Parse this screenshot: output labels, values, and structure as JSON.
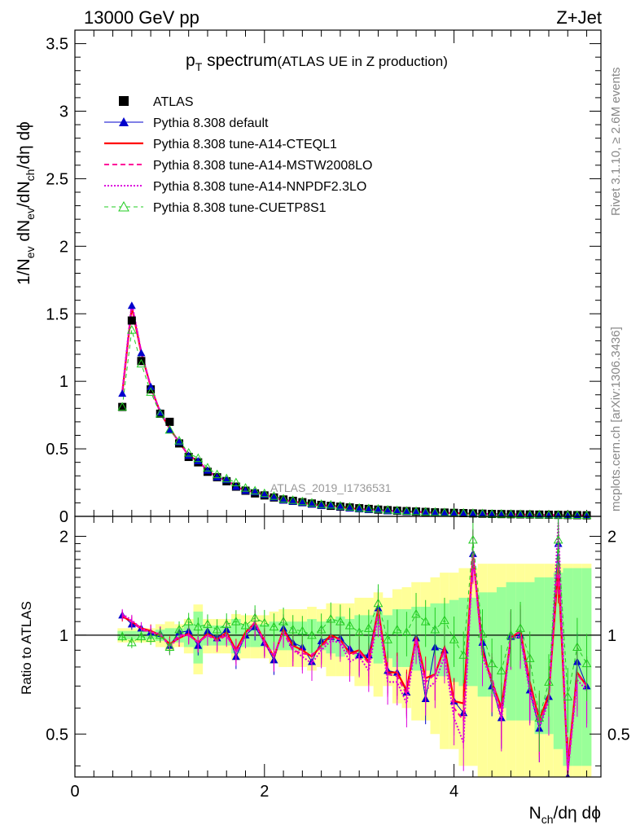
{
  "header": {
    "left": "13000 GeV pp",
    "right": "Z+Jet"
  },
  "plot_title": {
    "main": "p",
    "sub": "T",
    "rest": " spectrum",
    "paren": "(ATLAS UE in Z production)"
  },
  "side_labels": {
    "rivet": "Rivet 3.1.10, ≥ 2.6M events",
    "mcplots": "mcplots.cern.ch [arXiv:1306.3436]"
  },
  "watermark": "ATLAS_2019_I1736531",
  "ylabel_main": {
    "p1": "1/N",
    "s1": "ev",
    "p2": " dN",
    "s2": "ev",
    "p3": "/dN",
    "s3": "ch",
    "p4": "/dη dϕ"
  },
  "ylabel_ratio": "Ratio to ATLAS",
  "xlabel": {
    "p1": "N",
    "s1": "ch",
    "p2": "/dη dϕ"
  },
  "colors": {
    "data": "#000000",
    "default": "#0000cc",
    "cteql1": "#ff0000",
    "mstw": "#ff0099",
    "nnpdf": "#dd00dd",
    "cuetp8s1": "#22cc22",
    "band_inner": "#99ff99",
    "band_outer": "#ffff99"
  },
  "chart_data": [
    {
      "type": "line",
      "panel": "main",
      "x": [
        0.5,
        0.6,
        0.7,
        0.8,
        0.9,
        1.0,
        1.1,
        1.2,
        1.3,
        1.4,
        1.5,
        1.6,
        1.7,
        1.8,
        1.9,
        2.0,
        2.1,
        2.2,
        2.3,
        2.4,
        2.5,
        2.6,
        2.7,
        2.8,
        2.9,
        3.0,
        3.1,
        3.2,
        3.3,
        3.4,
        3.5,
        3.6,
        3.7,
        3.8,
        3.9,
        4.0,
        4.1,
        4.2,
        4.3,
        4.4,
        4.5,
        4.6,
        4.7,
        4.8,
        4.9,
        5.0,
        5.1,
        5.2,
        5.3,
        5.4
      ],
      "xlim": [
        0,
        5.55
      ],
      "ylim": [
        0,
        3.6
      ],
      "xticks": [
        0,
        2,
        4
      ],
      "yticks": [
        0,
        0.5,
        1,
        1.5,
        2,
        2.5,
        3,
        3.5
      ],
      "series": [
        {
          "name": "ATLAS",
          "style": "square",
          "values": [
            0.81,
            1.45,
            1.15,
            0.94,
            0.76,
            0.7,
            0.54,
            0.44,
            0.4,
            0.33,
            0.29,
            0.26,
            0.22,
            0.19,
            0.17,
            0.155,
            0.14,
            0.125,
            0.115,
            0.105,
            0.095,
            0.085,
            0.078,
            0.072,
            0.066,
            0.06,
            0.055,
            0.05,
            0.046,
            0.042,
            0.039,
            0.036,
            0.033,
            0.03,
            0.028,
            0.026,
            0.024,
            0.022,
            0.02,
            0.018,
            0.017,
            0.016,
            0.015,
            0.014,
            0.013,
            0.012,
            0.011,
            0.01,
            0.009,
            0.008
          ]
        },
        {
          "name": "Pythia 8.308 default",
          "style": "solid-triangle",
          "values": [
            0.91,
            1.56,
            1.21,
            0.96,
            0.77,
            0.64,
            0.55,
            0.45,
            0.41,
            0.34,
            0.29,
            0.27,
            0.22,
            0.19,
            0.18,
            0.16,
            0.14,
            0.12,
            0.11,
            0.1,
            0.09,
            0.08,
            0.08,
            0.07,
            0.06,
            0.055,
            0.05,
            0.05,
            0.04,
            0.04,
            0.035,
            0.035,
            0.03,
            0.028,
            0.026,
            0.024,
            0.022,
            0.02,
            0.018,
            0.017,
            0.016,
            0.015,
            0.014,
            0.013,
            0.012,
            0.011,
            0.01,
            0.009,
            0.008,
            0.007
          ]
        },
        {
          "name": "Pythia 8.308 tune-A14-CTEQL1",
          "style": "solid",
          "values": [
            0.91,
            1.55,
            1.21,
            0.96,
            0.77,
            0.65,
            0.55,
            0.45,
            0.41,
            0.34,
            0.29,
            0.27,
            0.22,
            0.19,
            0.18,
            0.16,
            0.14,
            0.12,
            0.11,
            0.1,
            0.09,
            0.08,
            0.08,
            0.07,
            0.06,
            0.055,
            0.05,
            0.05,
            0.04,
            0.04,
            0.035,
            0.035,
            0.03,
            0.028,
            0.026,
            0.024,
            0.022,
            0.02,
            0.018,
            0.017,
            0.016,
            0.015,
            0.014,
            0.013,
            0.012,
            0.011,
            0.01,
            0.009,
            0.008,
            0.007
          ]
        },
        {
          "name": "Pythia 8.308 tune-A14-MSTW2008LO",
          "style": "dashed",
          "values": [
            0.92,
            1.57,
            1.22,
            0.96,
            0.77,
            0.65,
            0.55,
            0.45,
            0.41,
            0.34,
            0.29,
            0.27,
            0.22,
            0.19,
            0.18,
            0.16,
            0.14,
            0.12,
            0.11,
            0.1,
            0.09,
            0.08,
            0.08,
            0.07,
            0.06,
            0.055,
            0.05,
            0.05,
            0.04,
            0.04,
            0.035,
            0.035,
            0.03,
            0.028,
            0.026,
            0.024,
            0.022,
            0.02,
            0.018,
            0.017,
            0.016,
            0.015,
            0.014,
            0.013,
            0.012,
            0.011,
            0.01,
            0.009,
            0.008,
            0.007
          ]
        },
        {
          "name": "Pythia 8.308 tune-A14-NNPDF2.3LO",
          "style": "dotted",
          "values": [
            0.93,
            1.58,
            1.22,
            0.96,
            0.77,
            0.65,
            0.55,
            0.45,
            0.41,
            0.34,
            0.29,
            0.27,
            0.22,
            0.19,
            0.18,
            0.16,
            0.14,
            0.12,
            0.11,
            0.1,
            0.09,
            0.08,
            0.08,
            0.07,
            0.06,
            0.055,
            0.05,
            0.05,
            0.04,
            0.04,
            0.035,
            0.035,
            0.03,
            0.028,
            0.026,
            0.024,
            0.022,
            0.02,
            0.018,
            0.017,
            0.016,
            0.015,
            0.014,
            0.013,
            0.012,
            0.011,
            0.01,
            0.009,
            0.008,
            0.007
          ]
        },
        {
          "name": "Pythia 8.308 tune-CUETP8S1",
          "style": "dashed-open-triangle",
          "values": [
            0.81,
            1.38,
            1.13,
            0.92,
            0.76,
            0.64,
            0.56,
            0.47,
            0.43,
            0.36,
            0.31,
            0.28,
            0.25,
            0.21,
            0.19,
            0.17,
            0.15,
            0.13,
            0.12,
            0.11,
            0.1,
            0.09,
            0.085,
            0.078,
            0.07,
            0.062,
            0.058,
            0.055,
            0.048,
            0.044,
            0.04,
            0.038,
            0.034,
            0.032,
            0.029,
            0.027,
            0.025,
            0.023,
            0.021,
            0.019,
            0.018,
            0.017,
            0.016,
            0.014,
            0.013,
            0.012,
            0.011,
            0.01,
            0.009,
            0.008
          ]
        }
      ]
    },
    {
      "type": "line",
      "panel": "ratio",
      "x": [
        0.5,
        0.6,
        0.7,
        0.8,
        0.9,
        1.0,
        1.1,
        1.2,
        1.3,
        1.4,
        1.5,
        1.6,
        1.7,
        1.8,
        1.9,
        2.0,
        2.1,
        2.2,
        2.3,
        2.4,
        2.5,
        2.6,
        2.7,
        2.8,
        2.9,
        3.0,
        3.1,
        3.2,
        3.3,
        3.4,
        3.5,
        3.6,
        3.7,
        3.8,
        3.9,
        4.0,
        4.1,
        4.2,
        4.3,
        4.4,
        4.5,
        4.6,
        4.7,
        4.8,
        4.9,
        5.0,
        5.1,
        5.2,
        5.3,
        5.4
      ],
      "xlim": [
        0,
        5.55
      ],
      "ylim": [
        0.37,
        2.3
      ],
      "log_y": true,
      "xticks": [
        0,
        2,
        4
      ],
      "yticks": [
        0.5,
        1,
        2
      ],
      "band_inner": [
        0.03,
        0.03,
        0.03,
        0.03,
        0.04,
        0.05,
        0.05,
        0.08,
        0.18,
        0.07,
        0.07,
        0.07,
        0.12,
        0.08,
        0.08,
        0.08,
        0.1,
        0.1,
        0.1,
        0.1,
        0.12,
        0.1,
        0.12,
        0.14,
        0.12,
        0.15,
        0.15,
        0.18,
        0.15,
        0.2,
        0.2,
        0.22,
        0.22,
        0.25,
        0.25,
        0.28,
        0.3,
        0.3,
        0.35,
        0.35,
        0.4,
        0.45,
        0.45,
        0.45,
        0.5,
        0.5,
        0.55,
        0.6,
        0.6,
        0.6
      ],
      "band_outer": [
        0.05,
        0.05,
        0.05,
        0.05,
        0.08,
        0.1,
        0.08,
        0.12,
        0.24,
        0.12,
        0.12,
        0.12,
        0.16,
        0.15,
        0.15,
        0.15,
        0.18,
        0.2,
        0.2,
        0.2,
        0.22,
        0.2,
        0.25,
        0.25,
        0.25,
        0.3,
        0.3,
        0.35,
        0.3,
        0.38,
        0.4,
        0.45,
        0.45,
        0.5,
        0.55,
        0.55,
        0.6,
        0.6,
        0.65,
        0.65,
        0.65,
        0.65,
        0.65,
        0.65,
        0.65,
        0.65,
        0.65,
        0.65,
        0.65,
        0.65
      ],
      "series": [
        {
          "name": "Pythia 8.308 default",
          "style": "solid-triangle",
          "values": [
            1.15,
            1.08,
            1.05,
            1.02,
            1.01,
            0.93,
            1.02,
            1.03,
            0.93,
            1.03,
            0.98,
            1.04,
            0.86,
            1.0,
            1.06,
            0.95,
            0.84,
            1.05,
            0.95,
            0.92,
            0.83,
            0.96,
            0.99,
            0.98,
            0.91,
            0.87,
            0.87,
            1.21,
            0.78,
            0.77,
            0.67,
            0.98,
            0.64,
            0.92,
            0.9,
            0.63,
            0.58,
            1.77,
            0.95,
            0.7,
            0.56,
            0.99,
            1.0,
            0.68,
            0.52,
            0.65,
            1.9,
            0.37,
            0.83,
            0.7
          ]
        },
        {
          "name": "Pythia 8.308 tune-A14-CTEQL1",
          "style": "solid",
          "values": [
            1.14,
            1.1,
            1.05,
            1.03,
            1.0,
            0.94,
            0.98,
            1.01,
            0.95,
            1.01,
            0.97,
            1.02,
            0.9,
            1.02,
            1.09,
            0.96,
            0.86,
            1.04,
            0.93,
            0.9,
            0.86,
            0.93,
            1.0,
            0.97,
            0.88,
            0.9,
            0.83,
            1.2,
            0.77,
            0.77,
            0.68,
            0.99,
            0.74,
            0.76,
            0.92,
            0.63,
            0.62,
            1.77,
            0.9,
            0.72,
            0.6,
            0.98,
            1.03,
            0.72,
            0.55,
            0.66,
            1.6,
            0.4,
            0.77,
            0.7
          ]
        },
        {
          "name": "Pythia 8.308 tune-A14-MSTW2008LO",
          "style": "dashed",
          "values": [
            1.15,
            1.1,
            1.04,
            1.02,
            1.01,
            0.93,
            1.0,
            1.0,
            0.95,
            1.0,
            0.96,
            1.0,
            0.89,
            1.0,
            1.1,
            0.95,
            0.87,
            1.02,
            0.9,
            0.88,
            0.87,
            0.92,
            0.98,
            0.97,
            0.87,
            0.89,
            0.82,
            1.18,
            0.76,
            0.75,
            0.66,
            0.98,
            0.72,
            0.76,
            0.9,
            0.6,
            0.55,
            1.75,
            0.88,
            0.74,
            0.57,
            1.0,
            1.02,
            0.7,
            0.54,
            0.64,
            1.7,
            0.38,
            0.76,
            0.7
          ]
        },
        {
          "name": "Pythia 8.308 tune-A14-NNPDF2.3LO",
          "style": "dotted",
          "values": [
            1.16,
            1.11,
            1.05,
            1.02,
            1.01,
            0.92,
            0.99,
            1.0,
            0.95,
            1.0,
            0.97,
            1.01,
            0.88,
            1.0,
            1.09,
            0.94,
            0.86,
            1.03,
            0.9,
            0.86,
            0.82,
            0.9,
            0.96,
            0.95,
            0.83,
            0.86,
            0.78,
            1.15,
            0.72,
            0.72,
            0.62,
            0.97,
            0.68,
            0.72,
            0.86,
            0.56,
            0.47,
            1.78,
            0.86,
            0.72,
            0.55,
            0.98,
            0.99,
            0.67,
            0.52,
            0.63,
            2.2,
            0.38,
            0.73,
            0.68
          ]
        },
        {
          "name": "Pythia 8.308 tune-CUETP8S1",
          "style": "dashed-open-triangle",
          "values": [
            0.99,
            0.95,
            0.99,
            0.98,
            1.0,
            0.92,
            1.04,
            1.1,
            1.06,
            1.08,
            1.04,
            1.08,
            1.1,
            1.07,
            1.13,
            1.09,
            1.06,
            1.1,
            1.04,
            1.03,
            1.0,
            1.04,
            1.12,
            1.1,
            1.07,
            1.02,
            1.05,
            1.25,
            0.97,
            1.04,
            1.02,
            1.16,
            1.1,
            1.04,
            1.11,
            0.97,
            0.87,
            1.95,
            1.01,
            0.82,
            0.78,
            1.0,
            1.05,
            0.85,
            0.56,
            0.72,
            1.95,
            0.65,
            0.92,
            0.82
          ]
        }
      ]
    }
  ]
}
